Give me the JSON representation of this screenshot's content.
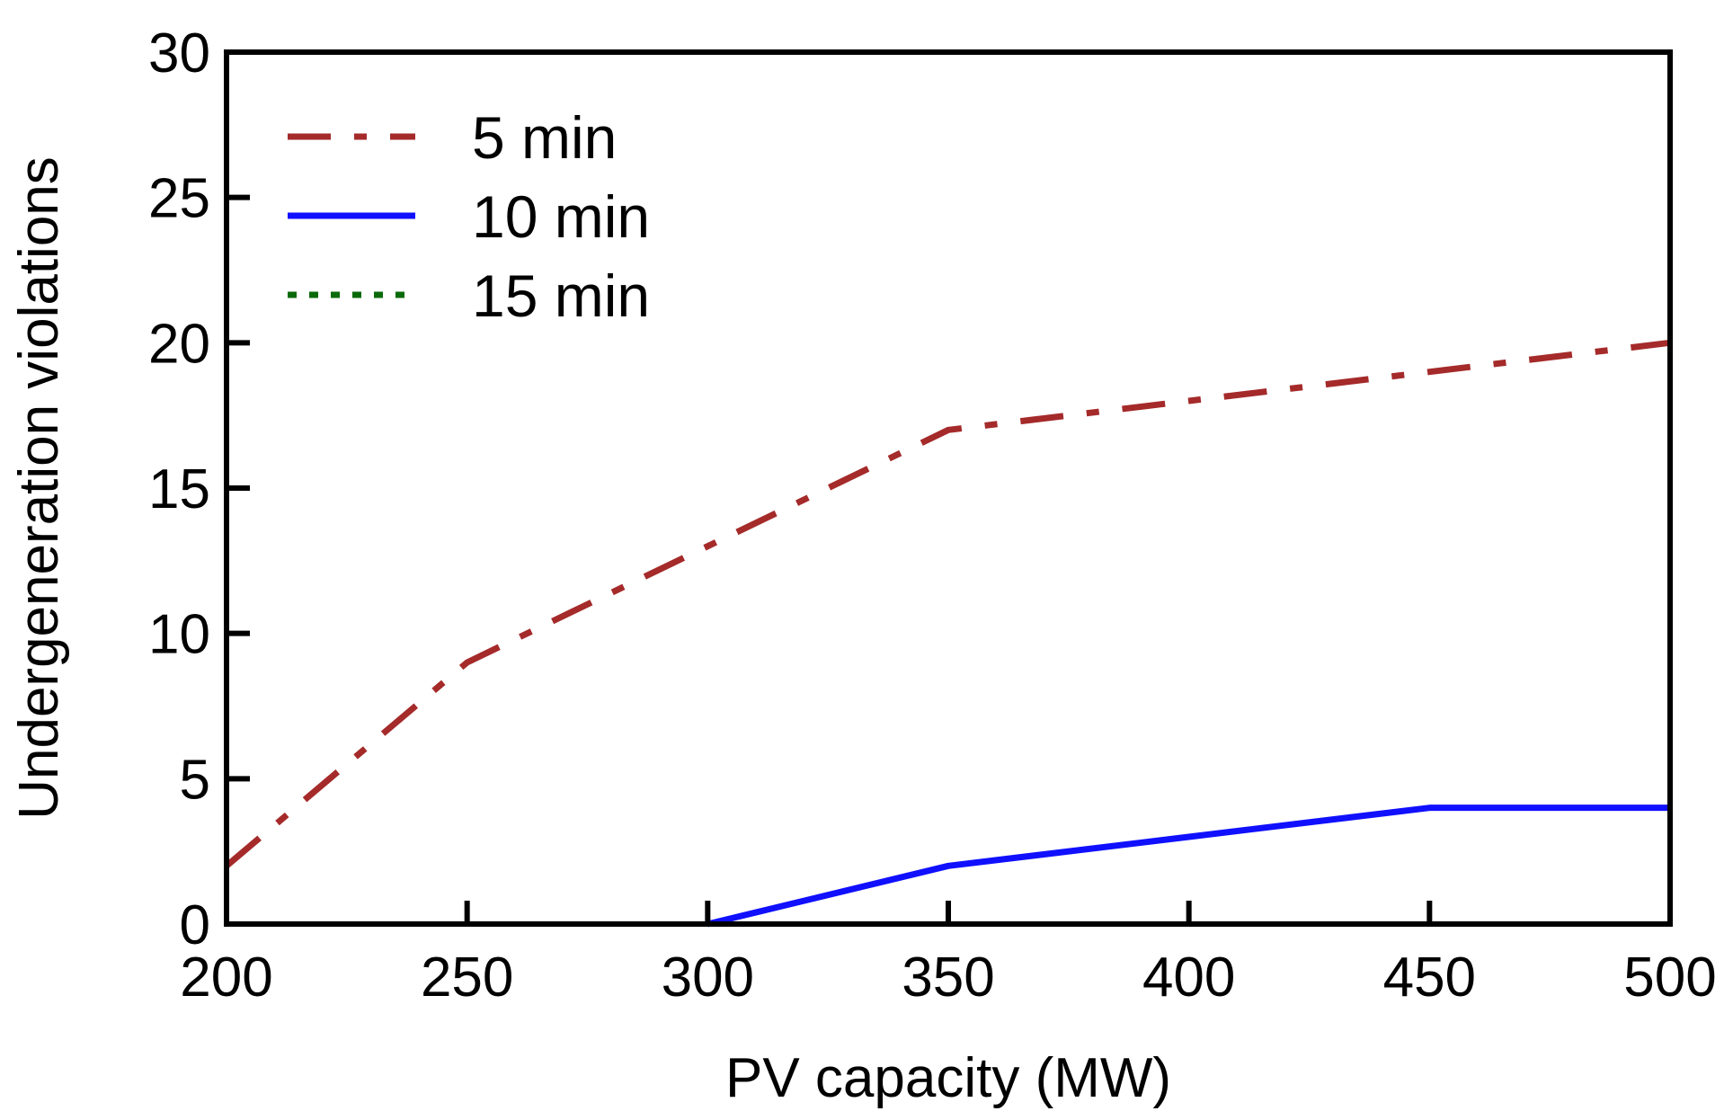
{
  "chart_data": {
    "type": "line",
    "title": "",
    "xlabel": "PV capacity (MW)",
    "ylabel": "Undergeneration violations",
    "xlim": [
      200,
      500
    ],
    "ylim": [
      0,
      30
    ],
    "xticks": [
      "200",
      "250",
      "300",
      "350",
      "400",
      "450",
      "500"
    ],
    "yticks": [
      "0",
      "5",
      "10",
      "15",
      "20",
      "25",
      "30"
    ],
    "grid": false,
    "legend_position": "top-left",
    "series": [
      {
        "name": "5 min",
        "color": "#a52a2a",
        "style": "dash-dot",
        "x": [
          200,
          250,
          300,
          350,
          400,
          450,
          500
        ],
        "y": [
          2,
          9,
          13,
          17,
          18,
          19,
          20
        ]
      },
      {
        "name": "10 min",
        "color": "#1010ff",
        "style": "solid",
        "x": [
          300,
          350,
          400,
          450,
          500
        ],
        "y": [
          0,
          2,
          3,
          4,
          4
        ]
      },
      {
        "name": "15 min",
        "color": "#0a6a0a",
        "style": "dotted",
        "x": [],
        "y": []
      }
    ]
  }
}
